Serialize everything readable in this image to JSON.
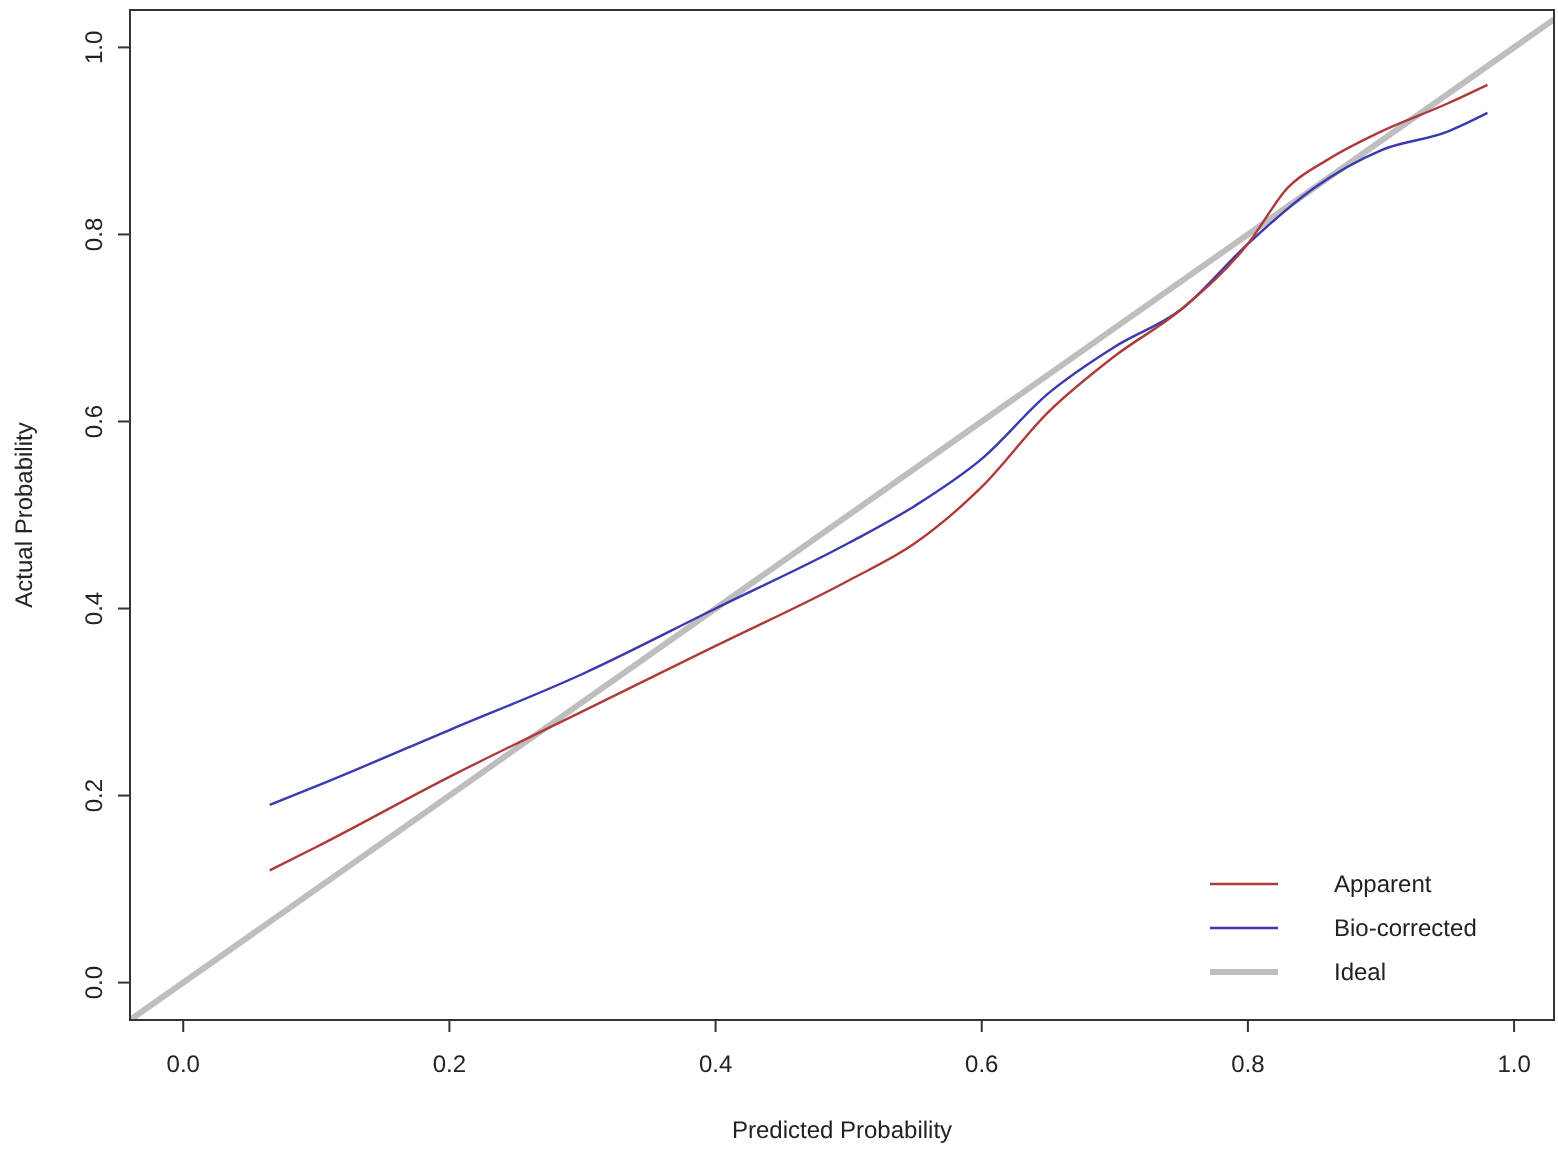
{
  "chart_data": {
    "type": "line",
    "xlabel": "Predicted Probability",
    "ylabel": "Actual Probability",
    "xlim": [
      -0.04,
      1.03
    ],
    "ylim": [
      -0.04,
      1.04
    ],
    "xticks": [
      {
        "value": 0,
        "label": "0.0"
      },
      {
        "value": 0.2,
        "label": "0.2"
      },
      {
        "value": 0.4,
        "label": "0.4"
      },
      {
        "value": 0.6,
        "label": "0.6"
      },
      {
        "value": 0.8,
        "label": "0.8"
      },
      {
        "value": 1,
        "label": "1.0"
      }
    ],
    "yticks": [
      {
        "value": 0,
        "label": "0.0"
      },
      {
        "value": 0.2,
        "label": "0.2"
      },
      {
        "value": 0.4,
        "label": "0.4"
      },
      {
        "value": 0.6,
        "label": "0.6"
      },
      {
        "value": 0.8,
        "label": "0.8"
      },
      {
        "value": 1,
        "label": "1.0"
      }
    ],
    "grid": false,
    "legend": "bottom right",
    "line_style": "solid",
    "marker": "none",
    "series": [
      {
        "name": "Apparent",
        "color": "#b03a3a",
        "x": [
          0.065,
          0.1,
          0.2,
          0.3,
          0.4,
          0.5,
          0.55,
          0.6,
          0.65,
          0.7,
          0.75,
          0.8,
          0.83,
          0.86,
          0.9,
          0.95,
          0.98
        ],
        "values": [
          0.12,
          0.145,
          0.22,
          0.29,
          0.36,
          0.43,
          0.47,
          0.53,
          0.61,
          0.67,
          0.72,
          0.79,
          0.85,
          0.88,
          0.91,
          0.94,
          0.96
        ]
      },
      {
        "name": "Bio-corrected",
        "color": "#3a3ab0",
        "x": [
          0.065,
          0.1,
          0.2,
          0.3,
          0.4,
          0.5,
          0.55,
          0.6,
          0.65,
          0.7,
          0.75,
          0.8,
          0.85,
          0.9,
          0.95,
          0.98
        ],
        "values": [
          0.19,
          0.21,
          0.27,
          0.33,
          0.4,
          0.47,
          0.51,
          0.56,
          0.63,
          0.68,
          0.72,
          0.79,
          0.85,
          0.89,
          0.91,
          0.93
        ]
      },
      {
        "name": "Ideal",
        "color": "#bebebe",
        "x": [
          -0.04,
          1.03
        ],
        "values": [
          -0.04,
          1.03
        ]
      }
    ]
  }
}
